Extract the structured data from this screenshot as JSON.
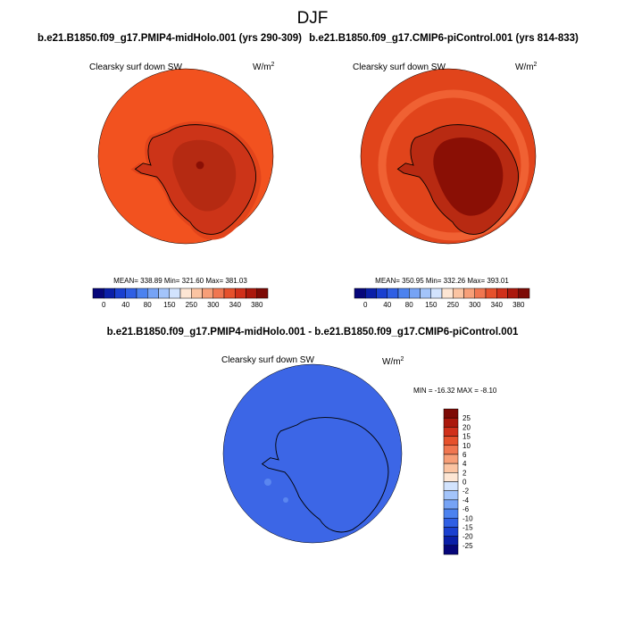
{
  "title": "DJF",
  "panels": [
    {
      "title": "b.e21.B1850.f09_g17.PMIP4-midHolo.001 (yrs 290-309)",
      "field": "Clearsky surf down SW",
      "units": "W/m",
      "units_sup": "2",
      "stats": "MEAN= 338.89  Min= 321.60  Max= 381.03",
      "colorbar": {
        "labels": [
          "0",
          "40",
          "80",
          "150",
          "250",
          "300",
          "340",
          "380"
        ]
      }
    },
    {
      "title": "b.e21.B1850.f09_g17.CMIP6-piControl.001 (yrs 814-833)",
      "field": "Clearsky surf down SW",
      "units": "W/m",
      "units_sup": "2",
      "stats": "MEAN= 350.95  Min= 332.26  Max= 393.01",
      "colorbar": {
        "labels": [
          "0",
          "40",
          "80",
          "150",
          "250",
          "300",
          "340",
          "380"
        ]
      }
    }
  ],
  "difference": {
    "title": "b.e21.B1850.f09_g17.PMIP4-midHolo.001 - b.e21.B1850.f09_g17.CMIP6-piControl.001",
    "field": "Clearsky surf down SW",
    "units": "W/m",
    "units_sup": "2",
    "stats": "MIN = -16.32 MAX =  -8.10",
    "colorbar": {
      "labels": [
        "25",
        "20",
        "15",
        "10",
        "6",
        "4",
        "2",
        "0",
        "-2",
        "-4",
        "-6",
        "-10",
        "-15",
        "-20",
        "-25"
      ]
    }
  }
}
